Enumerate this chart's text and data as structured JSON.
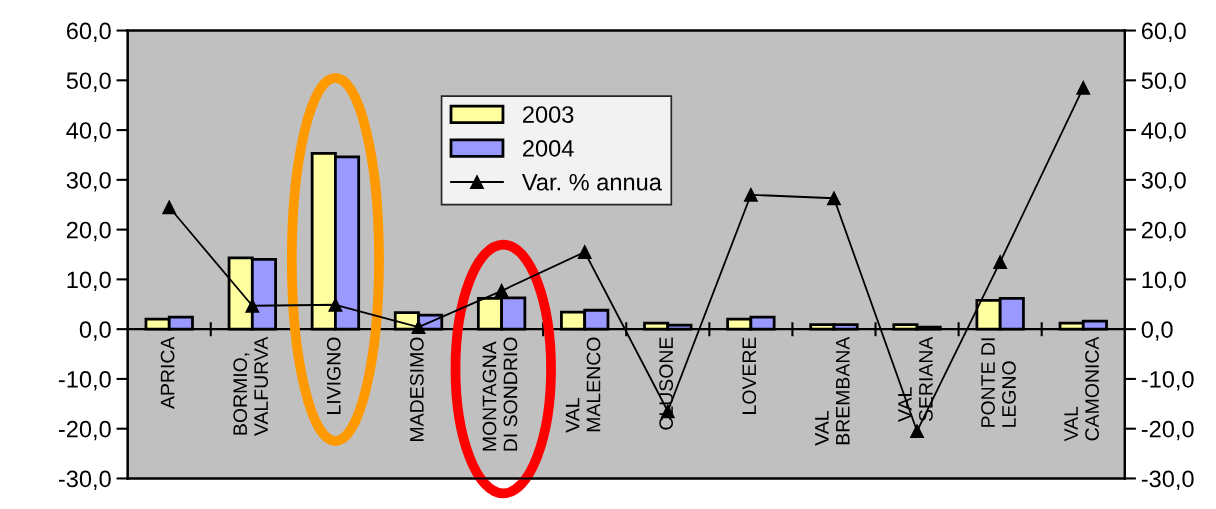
{
  "chart_data": {
    "type": "bar",
    "categories": [
      "APRICA",
      "BORMIO,\nVALFURVA",
      "LIVIGNO",
      "MADESIMO",
      "MONTAGNA\nDI SONDRIO",
      "VAL\nMALENCO",
      "CLUSONE",
      "LOVERE",
      "VAL\nBREMBANA",
      "VAL\nSERIANA",
      "PONTE DI\nLEGNO",
      "VAL\nCAMONICA"
    ],
    "series": [
      {
        "name": "2003",
        "color": "#ffffa0",
        "values": [
          2.0,
          14.3,
          35.3,
          3.3,
          6.2,
          3.4,
          1.2,
          2.0,
          0.9,
          0.9,
          5.8,
          1.2
        ]
      },
      {
        "name": "2004",
        "color": "#9999ff",
        "values": [
          2.4,
          14.0,
          34.6,
          2.8,
          6.3,
          3.8,
          0.8,
          2.4,
          0.9,
          0.4,
          6.2,
          1.6
        ]
      },
      {
        "name": "Var. % annua",
        "type": "line",
        "axis": "y2",
        "color": "#000000",
        "values": [
          24.5,
          4.7,
          4.9,
          0.4,
          7.7,
          15.5,
          -16.5,
          27.0,
          26.3,
          -20.5,
          13.5,
          48.5
        ]
      }
    ],
    "ylim": [
      -30,
      60
    ],
    "yticks": [
      {
        "value": -30,
        "label": "-30,0"
      },
      {
        "value": -20,
        "label": "-20,0"
      },
      {
        "value": -10,
        "label": "-10,0"
      },
      {
        "value": 0,
        "label": "0,0"
      },
      {
        "value": 10,
        "label": "10,0"
      },
      {
        "value": 20,
        "label": "20,0"
      },
      {
        "value": 30,
        "label": "30,0"
      },
      {
        "value": 40,
        "label": "40,0"
      },
      {
        "value": 50,
        "label": "50,0"
      },
      {
        "value": 60,
        "label": "60,0"
      }
    ],
    "y2lim": [
      -30,
      60
    ],
    "y2ticks": [
      {
        "value": -30,
        "label": "-30,0"
      },
      {
        "value": -20,
        "label": "-20,0"
      },
      {
        "value": -10,
        "label": "-10,0"
      },
      {
        "value": 0,
        "label": "0,0"
      },
      {
        "value": 10,
        "label": "10,0"
      },
      {
        "value": 20,
        "label": "20,0"
      },
      {
        "value": 30,
        "label": "30,0"
      },
      {
        "value": 40,
        "label": "40,0"
      },
      {
        "value": 50,
        "label": "50,0"
      },
      {
        "value": 60,
        "label": "60,0"
      }
    ],
    "marker": "triangle",
    "line_style": "solid",
    "grid": false,
    "legend": "top"
  }
}
